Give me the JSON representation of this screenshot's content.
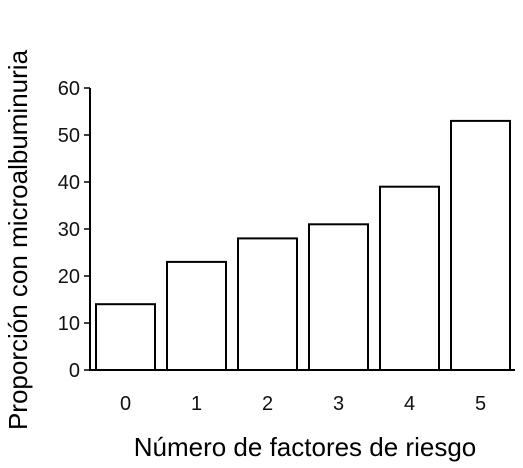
{
  "chart_data": {
    "type": "bar",
    "title": "",
    "xlabel": "Número de factores de riesgo",
    "ylabel": "Proporción con microalbuminuria",
    "categories": [
      "0",
      "1",
      "2",
      "3",
      "4",
      "5"
    ],
    "values": [
      14,
      23,
      28,
      31,
      39,
      53
    ],
    "ylim": [
      0,
      60
    ],
    "yticks": [
      "0",
      "10",
      "20",
      "30",
      "40",
      "50",
      "60"
    ],
    "grid": false,
    "legend": "none",
    "bar_fill": "#ffffff",
    "bar_stroke": "#000000"
  }
}
